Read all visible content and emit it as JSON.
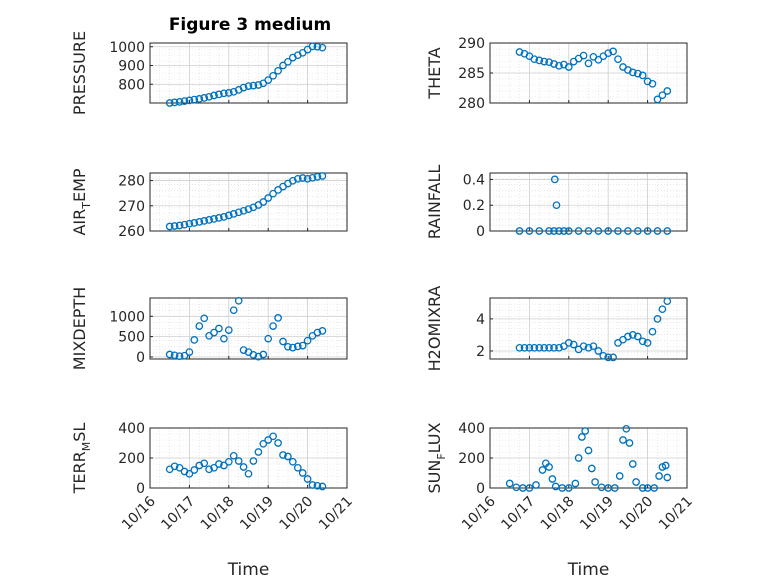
{
  "figure": {
    "title": "Figure 3 medium",
    "marker_color": "#0072BD"
  },
  "chart_data": [
    {
      "type": "scatter",
      "panel": 1,
      "ylabel": "PRESSURE",
      "ylabel_sub": "",
      "xlabel": "",
      "xlim": [
        "10/16",
        "10/21"
      ],
      "ylim": [
        700,
        1020
      ],
      "yticks": [
        800,
        900,
        1000
      ],
      "yticklabels": [
        "800",
        "900",
        "1000"
      ],
      "grid": true,
      "x": [
        "10/16 12:00",
        "10/16 15:00",
        "10/16 18:00",
        "10/16 21:00",
        "10/17 00:00",
        "10/17 03:00",
        "10/17 06:00",
        "10/17 09:00",
        "10/17 12:00",
        "10/17 15:00",
        "10/17 18:00",
        "10/17 21:00",
        "10/18 00:00",
        "10/18 03:00",
        "10/18 06:00",
        "10/18 09:00",
        "10/18 12:00",
        "10/18 15:00",
        "10/18 18:00",
        "10/18 21:00",
        "10/19 00:00",
        "10/19 03:00",
        "10/19 06:00",
        "10/19 09:00",
        "10/19 12:00",
        "10/19 15:00",
        "10/19 18:00",
        "10/19 21:00",
        "10/20 00:00",
        "10/20 03:00",
        "10/20 06:00",
        "10/20 09:00"
      ],
      "y": [
        700,
        703,
        706,
        710,
        714,
        718,
        722,
        727,
        733,
        740,
        746,
        752,
        754,
        760,
        770,
        782,
        790,
        793,
        796,
        805,
        822,
        845,
        872,
        900,
        920,
        942,
        955,
        968,
        985,
        1002,
        1000,
        995
      ]
    },
    {
      "type": "scatter",
      "panel": 2,
      "ylabel": "THETA",
      "ylabel_sub": "",
      "xlabel": "",
      "xlim": [
        "10/16",
        "10/21"
      ],
      "ylim": [
        280,
        290
      ],
      "yticks": [
        280,
        285,
        290
      ],
      "yticklabels": [
        "280",
        "285",
        "290"
      ],
      "grid": true,
      "x": [
        "10/16 18:00",
        "10/16 21:00",
        "10/17 00:00",
        "10/17 03:00",
        "10/17 06:00",
        "10/17 09:00",
        "10/17 12:00",
        "10/17 15:00",
        "10/17 18:00",
        "10/17 21:00",
        "10/18 00:00",
        "10/18 03:00",
        "10/18 06:00",
        "10/18 09:00",
        "10/18 12:00",
        "10/18 15:00",
        "10/18 18:00",
        "10/18 21:00",
        "10/19 00:00",
        "10/19 03:00",
        "10/19 06:00",
        "10/19 09:00",
        "10/19 12:00",
        "10/19 15:00",
        "10/19 18:00",
        "10/19 21:00",
        "10/20 00:00",
        "10/20 03:00",
        "10/20 06:00",
        "10/20 09:00",
        "10/20 12:00"
      ],
      "y": [
        288.5,
        288.2,
        287.8,
        287.3,
        287.1,
        286.9,
        286.8,
        286.5,
        286.2,
        286.4,
        286.0,
        286.9,
        287.4,
        287.9,
        286.6,
        287.7,
        287.2,
        287.8,
        288.3,
        288.6,
        287.3,
        286.0,
        285.5,
        285.1,
        284.9,
        284.6,
        283.6,
        283.2,
        280.6,
        281.3,
        282.0
      ]
    },
    {
      "type": "scatter",
      "panel": 3,
      "ylabel": "AIR",
      "ylabel_sub": "T",
      "ylabel_rest": "EMP",
      "xlabel": "",
      "xlim": [
        "10/16",
        "10/21"
      ],
      "ylim": [
        260,
        283
      ],
      "yticks": [
        260,
        270,
        280
      ],
      "yticklabels": [
        "260",
        "270",
        "280"
      ],
      "grid": true,
      "x": [
        "10/16 12:00",
        "10/16 15:00",
        "10/16 18:00",
        "10/16 21:00",
        "10/17 00:00",
        "10/17 03:00",
        "10/17 06:00",
        "10/17 09:00",
        "10/17 12:00",
        "10/17 15:00",
        "10/17 18:00",
        "10/17 21:00",
        "10/18 00:00",
        "10/18 03:00",
        "10/18 06:00",
        "10/18 09:00",
        "10/18 12:00",
        "10/18 15:00",
        "10/18 18:00",
        "10/18 21:00",
        "10/19 00:00",
        "10/19 03:00",
        "10/19 06:00",
        "10/19 09:00",
        "10/19 12:00",
        "10/19 15:00",
        "10/19 18:00",
        "10/19 21:00",
        "10/20 00:00",
        "10/20 03:00",
        "10/20 06:00",
        "10/20 09:00"
      ],
      "y": [
        261.8,
        262.0,
        262.2,
        262.5,
        262.9,
        263.2,
        263.6,
        264.0,
        264.4,
        264.8,
        265.2,
        265.6,
        266.2,
        266.8,
        267.4,
        268.0,
        268.7,
        269.4,
        270.3,
        271.5,
        273.1,
        274.8,
        276.3,
        277.6,
        278.8,
        279.9,
        280.7,
        281.0,
        280.7,
        281.1,
        281.5,
        281.8
      ]
    },
    {
      "type": "scatter",
      "panel": 4,
      "ylabel": "RAINFALL",
      "ylabel_sub": "",
      "xlabel": "",
      "xlim": [
        "10/16",
        "10/21"
      ],
      "ylim": [
        0,
        0.45
      ],
      "yticks": [
        0,
        0.2,
        0.4
      ],
      "yticklabels": [
        "0",
        "0.2",
        "0.4"
      ],
      "grid": true,
      "x": [
        "10/16 18:00",
        "10/17 00:00",
        "10/17 06:00",
        "10/17 12:00",
        "10/17 15:00",
        "10/17 18:00",
        "10/17 21:00",
        "10/18 00:00",
        "10/18 06:00",
        "10/18 12:00",
        "10/18 18:00",
        "10/19 00:00",
        "10/19 06:00",
        "10/19 12:00",
        "10/19 18:00",
        "10/20 00:00",
        "10/20 06:00",
        "10/20 12:00",
        "10/17 15:30",
        "10/17 16:30"
      ],
      "y": [
        0,
        0,
        0,
        0,
        0,
        0,
        0,
        0,
        0,
        0,
        0,
        0,
        0,
        0,
        0,
        0,
        0,
        0,
        0.4,
        0.2
      ]
    },
    {
      "type": "scatter",
      "panel": 5,
      "ylabel": "MIXDEPTH",
      "ylabel_sub": "",
      "xlabel": "",
      "xlim": [
        "10/16",
        "10/21"
      ],
      "ylim": [
        -50,
        1450
      ],
      "yticks": [
        0,
        500,
        1000
      ],
      "yticklabels": [
        "0",
        "500",
        "1000"
      ],
      "grid": true,
      "x": [
        "10/16 12:00",
        "10/16 15:00",
        "10/16 18:00",
        "10/16 21:00",
        "10/17 00:00",
        "10/17 03:00",
        "10/17 06:00",
        "10/17 09:00",
        "10/17 12:00",
        "10/17 15:00",
        "10/17 18:00",
        "10/17 21:00",
        "10/18 00:00",
        "10/18 03:00",
        "10/18 06:00",
        "10/18 09:00",
        "10/18 12:00",
        "10/18 15:00",
        "10/18 18:00",
        "10/18 21:00",
        "10/19 00:00",
        "10/19 03:00",
        "10/19 06:00",
        "10/19 09:00",
        "10/19 12:00",
        "10/19 15:00",
        "10/19 18:00",
        "10/19 21:00",
        "10/20 00:00",
        "10/20 03:00",
        "10/20 06:00",
        "10/20 09:00"
      ],
      "y": [
        60,
        40,
        20,
        30,
        120,
        420,
        760,
        950,
        520,
        600,
        700,
        450,
        660,
        1150,
        1380,
        170,
        120,
        50,
        10,
        60,
        450,
        760,
        960,
        380,
        250,
        230,
        260,
        280,
        400,
        520,
        600,
        640
      ]
    },
    {
      "type": "scatter",
      "panel": 6,
      "ylabel": "H2OMIXRA",
      "ylabel_sub": "",
      "xlabel": "",
      "xlim": [
        "10/16",
        "10/21"
      ],
      "ylim": [
        1.5,
        5.3
      ],
      "yticks": [
        2,
        4
      ],
      "yticklabels": [
        "2",
        "4"
      ],
      "grid": true,
      "x": [
        "10/16 18:00",
        "10/16 21:00",
        "10/17 00:00",
        "10/17 03:00",
        "10/17 06:00",
        "10/17 09:00",
        "10/17 12:00",
        "10/17 15:00",
        "10/17 18:00",
        "10/17 21:00",
        "10/18 00:00",
        "10/18 03:00",
        "10/18 06:00",
        "10/18 09:00",
        "10/18 12:00",
        "10/18 15:00",
        "10/18 18:00",
        "10/18 21:00",
        "10/19 00:00",
        "10/19 03:00",
        "10/19 06:00",
        "10/19 09:00",
        "10/19 12:00",
        "10/19 15:00",
        "10/19 18:00",
        "10/19 21:00",
        "10/20 00:00",
        "10/20 03:00",
        "10/20 06:00",
        "10/20 09:00",
        "10/20 12:00"
      ],
      "y": [
        2.2,
        2.2,
        2.2,
        2.2,
        2.2,
        2.2,
        2.2,
        2.2,
        2.2,
        2.3,
        2.5,
        2.4,
        2.1,
        2.3,
        2.2,
        2.3,
        2.0,
        1.7,
        1.6,
        1.6,
        2.5,
        2.7,
        2.9,
        3.0,
        2.9,
        2.6,
        2.5,
        3.2,
        4.0,
        4.6,
        5.1
      ]
    },
    {
      "type": "scatter",
      "panel": 7,
      "ylabel": "TERR",
      "ylabel_sub": "M",
      "ylabel_rest": "SL",
      "xlabel": "Time",
      "xlim": [
        "10/16",
        "10/21"
      ],
      "ylim": [
        0,
        400
      ],
      "yticks": [
        0,
        200,
        400
      ],
      "yticklabels": [
        "0",
        "200",
        "400"
      ],
      "xticks": [
        "10/16",
        "10/17",
        "10/18",
        "10/19",
        "10/20",
        "10/21"
      ],
      "grid": true,
      "x": [
        "10/16 12:00",
        "10/16 15:00",
        "10/16 18:00",
        "10/16 21:00",
        "10/17 00:00",
        "10/17 03:00",
        "10/17 06:00",
        "10/17 09:00",
        "10/17 12:00",
        "10/17 15:00",
        "10/17 18:00",
        "10/17 21:00",
        "10/18 00:00",
        "10/18 03:00",
        "10/18 06:00",
        "10/18 09:00",
        "10/18 12:00",
        "10/18 15:00",
        "10/18 18:00",
        "10/18 21:00",
        "10/19 00:00",
        "10/19 03:00",
        "10/19 06:00",
        "10/19 09:00",
        "10/19 12:00",
        "10/19 15:00",
        "10/19 18:00",
        "10/19 21:00",
        "10/20 00:00",
        "10/20 03:00",
        "10/20 06:00",
        "10/20 09:00"
      ],
      "y": [
        125,
        145,
        135,
        110,
        95,
        120,
        150,
        165,
        125,
        135,
        160,
        150,
        175,
        215,
        180,
        140,
        95,
        180,
        240,
        295,
        320,
        345,
        300,
        220,
        210,
        175,
        135,
        100,
        60,
        20,
        15,
        10
      ]
    },
    {
      "type": "scatter",
      "panel": 8,
      "ylabel": "SUN",
      "ylabel_sub": "F",
      "ylabel_rest": "LUX",
      "xlabel": "Time",
      "xlim": [
        "10/16",
        "10/21"
      ],
      "ylim": [
        0,
        400
      ],
      "yticks": [
        0,
        200,
        400
      ],
      "yticklabels": [
        "0",
        "200",
        "400"
      ],
      "xticks": [
        "10/16",
        "10/17",
        "10/18",
        "10/19",
        "10/20",
        "10/21"
      ],
      "grid": true,
      "x": [
        "10/16 12:00",
        "10/16 16:00",
        "10/16 20:00",
        "10/17 00:00",
        "10/17 04:00",
        "10/17 08:00",
        "10/17 10:00",
        "10/17 12:00",
        "10/17 14:00",
        "10/17 16:00",
        "10/17 20:00",
        "10/18 00:00",
        "10/18 04:00",
        "10/18 06:00",
        "10/18 08:00",
        "10/18 10:00",
        "10/18 12:00",
        "10/18 14:00",
        "10/18 16:00",
        "10/18 20:00",
        "10/19 00:00",
        "10/19 04:00",
        "10/19 07:00",
        "10/19 09:00",
        "10/19 11:00",
        "10/19 13:00",
        "10/19 15:00",
        "10/19 17:00",
        "10/19 21:00",
        "10/20 00:00",
        "10/20 04:00",
        "10/20 07:00",
        "10/20 09:00",
        "10/20 11:00",
        "10/20 12:00"
      ],
      "y": [
        30,
        5,
        0,
        0,
        20,
        120,
        165,
        140,
        60,
        10,
        0,
        0,
        30,
        200,
        340,
        380,
        250,
        130,
        40,
        5,
        0,
        0,
        80,
        320,
        395,
        300,
        160,
        40,
        0,
        0,
        0,
        80,
        140,
        150,
        70
      ]
    }
  ]
}
